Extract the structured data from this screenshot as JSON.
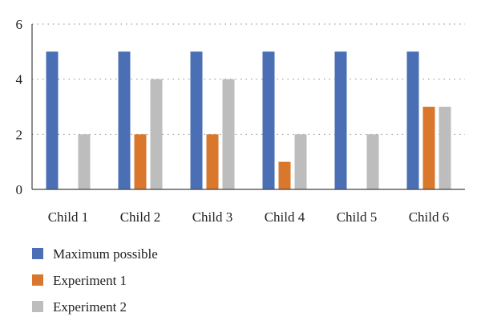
{
  "chart_data": {
    "type": "bar",
    "categories": [
      "Child 1",
      "Child 2",
      "Child 3",
      "Child 4",
      "Child 5",
      "Child 6"
    ],
    "series": [
      {
        "name": "Maximum possible",
        "values": [
          5,
          5,
          5,
          5,
          5,
          5
        ],
        "color": "#4a6fb5"
      },
      {
        "name": "Experiment 1",
        "values": [
          0,
          2,
          2,
          1,
          0,
          3
        ],
        "color": "#d9772c"
      },
      {
        "name": "Experiment 2",
        "values": [
          2,
          4,
          4,
          2,
          2,
          3
        ],
        "color": "#bdbdbd"
      }
    ],
    "y_ticks": [
      "0",
      "2",
      "4",
      "6"
    ],
    "ylim": [
      0,
      6
    ],
    "title": "",
    "xlabel": "",
    "ylabel": "",
    "grid": "dotted horizontal",
    "legend_position": "bottom-left"
  }
}
